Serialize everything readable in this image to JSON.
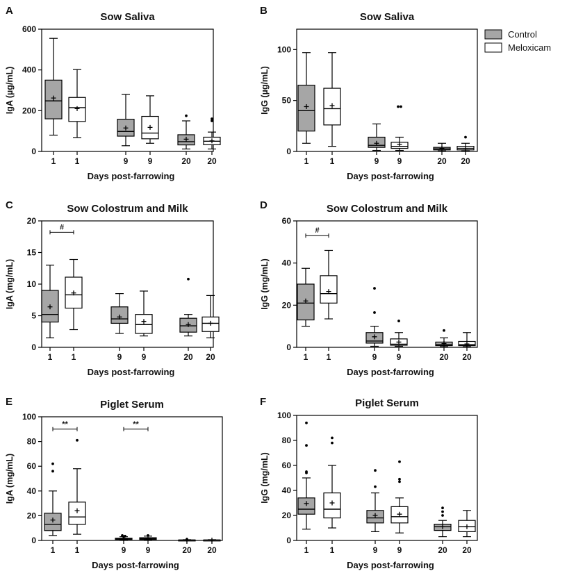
{
  "legend": {
    "entries": [
      {
        "label": "Control",
        "color": "#a6a6a6"
      },
      {
        "label": "Meloxicam",
        "color": "#ffffff"
      }
    ]
  },
  "chart_data": [
    {
      "panel": "A",
      "type": "boxplot",
      "title": "Sow Saliva",
      "xlabel": "Days post-farrowing",
      "ylabel": "IgA (µg/mL)",
      "ylim": [
        0,
        600
      ],
      "yticks": [
        0,
        200,
        400,
        600
      ],
      "categories": [
        "1",
        "1",
        "9",
        "9",
        "20",
        "20"
      ],
      "groups": [
        "Control",
        "Meloxicam",
        "Control",
        "Meloxicam",
        "Control",
        "Meloxicam"
      ],
      "boxes": [
        {
          "min": 80,
          "q1": 160,
          "median": 248,
          "q3": 350,
          "max": 555,
          "mean": 262,
          "outliers": []
        },
        {
          "min": 68,
          "q1": 147,
          "median": 215,
          "q3": 265,
          "max": 402,
          "mean": 210,
          "outliers": []
        },
        {
          "min": 28,
          "q1": 75,
          "median": 98,
          "q3": 158,
          "max": 280,
          "mean": 115,
          "outliers": []
        },
        {
          "min": 40,
          "q1": 62,
          "median": 90,
          "q3": 172,
          "max": 273,
          "mean": 118,
          "outliers": []
        },
        {
          "min": 12,
          "q1": 32,
          "median": 48,
          "q3": 82,
          "max": 150,
          "mean": 60,
          "outliers": [
            175
          ]
        },
        {
          "min": 12,
          "q1": 33,
          "median": 50,
          "q3": 70,
          "max": 95,
          "mean": 52,
          "outliers": [
            150,
            160
          ]
        }
      ],
      "significance": []
    },
    {
      "panel": "B",
      "type": "boxplot",
      "title": "Sow Saliva",
      "xlabel": "Days post-farrowing",
      "ylabel": "IgG (µg/mL)",
      "ylim": [
        0,
        120
      ],
      "yticks": [
        0,
        50,
        100
      ],
      "categories": [
        "1",
        "1",
        "9",
        "9",
        "20",
        "20"
      ],
      "groups": [
        "Control",
        "Meloxicam",
        "Control",
        "Meloxicam",
        "Control",
        "Meloxicam"
      ],
      "boxes": [
        {
          "min": 8,
          "q1": 20,
          "median": 40,
          "q3": 65,
          "max": 97,
          "mean": 44,
          "outliers": []
        },
        {
          "min": 5,
          "q1": 26,
          "median": 42,
          "q3": 62,
          "max": 97,
          "mean": 45,
          "outliers": []
        },
        {
          "min": 1,
          "q1": 4,
          "median": 6,
          "q3": 14,
          "max": 27,
          "mean": 8,
          "outliers": []
        },
        {
          "min": 1,
          "q1": 3,
          "median": 5,
          "q3": 9,
          "max": 14,
          "mean": 7,
          "outliers": [
            44,
            44
          ]
        },
        {
          "min": 0.5,
          "q1": 1.5,
          "median": 2.5,
          "q3": 4,
          "max": 8,
          "mean": 3,
          "outliers": []
        },
        {
          "min": 0.5,
          "q1": 1.5,
          "median": 3,
          "q3": 5,
          "max": 8,
          "mean": 3,
          "outliers": [
            14
          ]
        }
      ],
      "significance": []
    },
    {
      "panel": "C",
      "type": "boxplot",
      "title": "Sow Colostrum and Milk",
      "xlabel": "Days post-farrowing",
      "ylabel": "IgA (mg/mL)",
      "ylim": [
        0,
        20
      ],
      "yticks": [
        0,
        5,
        10,
        15,
        20
      ],
      "categories": [
        "1",
        "1",
        "9",
        "9",
        "20",
        "20"
      ],
      "groups": [
        "Control",
        "Meloxicam",
        "Control",
        "Meloxicam",
        "Control",
        "Meloxicam"
      ],
      "boxes": [
        {
          "min": 1.5,
          "q1": 4.0,
          "median": 5.2,
          "q3": 9.0,
          "max": 13.0,
          "mean": 6.4,
          "outliers": []
        },
        {
          "min": 2.8,
          "q1": 6.2,
          "median": 8.3,
          "q3": 11.1,
          "max": 13.9,
          "mean": 8.6,
          "outliers": []
        },
        {
          "min": 2.2,
          "q1": 3.8,
          "median": 4.5,
          "q3": 6.4,
          "max": 8.5,
          "mean": 4.8,
          "outliers": []
        },
        {
          "min": 1.8,
          "q1": 2.2,
          "median": 3.6,
          "q3": 5.2,
          "max": 8.9,
          "mean": 4.1,
          "outliers": []
        },
        {
          "min": 1.8,
          "q1": 2.4,
          "median": 3.4,
          "q3": 4.6,
          "max": 5.2,
          "mean": 3.6,
          "outliers": [
            10.8
          ]
        },
        {
          "min": 1.5,
          "q1": 2.5,
          "median": 3.8,
          "q3": 4.8,
          "max": 8.2,
          "mean": 3.8,
          "outliers": []
        }
      ],
      "significance": [
        {
          "from": 0,
          "to": 1,
          "label": "#",
          "y": 18.2
        }
      ]
    },
    {
      "panel": "D",
      "type": "boxplot",
      "title": "Sow Colostrum and Milk",
      "xlabel": "Days post-farrowing",
      "ylabel": "IgG (mg/mL)",
      "ylim": [
        0,
        60
      ],
      "yticks": [
        0,
        20,
        40,
        60
      ],
      "categories": [
        "1",
        "1",
        "9",
        "9",
        "20",
        "20"
      ],
      "groups": [
        "Control",
        "Meloxicam",
        "Control",
        "Meloxicam",
        "Control",
        "Meloxicam"
      ],
      "boxes": [
        {
          "min": 10,
          "q1": 13,
          "median": 21,
          "q3": 30,
          "max": 37.5,
          "mean": 22,
          "outliers": []
        },
        {
          "min": 13.5,
          "q1": 21,
          "median": 25.5,
          "q3": 34,
          "max": 46,
          "mean": 26.5,
          "outliers": []
        },
        {
          "min": 0.5,
          "q1": 2,
          "median": 3,
          "q3": 7,
          "max": 10,
          "mean": 5,
          "outliers": [
            16.5,
            28
          ]
        },
        {
          "min": 0.5,
          "q1": 1,
          "median": 1.5,
          "q3": 4,
          "max": 7,
          "mean": 2.5,
          "outliers": [
            12.5
          ]
        },
        {
          "min": 0.3,
          "q1": 0.8,
          "median": 1.3,
          "q3": 2.5,
          "max": 4.5,
          "mean": 1.8,
          "outliers": [
            8
          ]
        },
        {
          "min": 0.3,
          "q1": 0.8,
          "median": 1.3,
          "q3": 2.8,
          "max": 7,
          "mean": 1.6,
          "outliers": []
        }
      ],
      "significance": [
        {
          "from": 0,
          "to": 1,
          "label": "#",
          "y": 53
        }
      ]
    },
    {
      "panel": "E",
      "type": "boxplot",
      "title": "Piglet Serum",
      "xlabel": "Days post-farrowing",
      "ylabel": "IgA (mg/mL)",
      "ylim": [
        0,
        100
      ],
      "yticks": [
        0,
        20,
        40,
        60,
        80,
        100
      ],
      "categories": [
        "1",
        "1",
        "9",
        "9",
        "20",
        "20"
      ],
      "groups": [
        "Control",
        "Meloxicam",
        "Control",
        "Meloxicam",
        "Control",
        "Meloxicam"
      ],
      "boxes": [
        {
          "min": 4,
          "q1": 8,
          "median": 13,
          "q3": 22,
          "max": 40,
          "mean": 16.5,
          "outliers": [
            56,
            62
          ]
        },
        {
          "min": 5,
          "q1": 13,
          "median": 19,
          "q3": 31,
          "max": 58,
          "mean": 24,
          "outliers": [
            81
          ]
        },
        {
          "min": 0.3,
          "q1": 0.8,
          "median": 1.2,
          "q3": 1.8,
          "max": 3,
          "mean": 1.3,
          "outliers": [
            4,
            3.5,
            3
          ]
        },
        {
          "min": 0.3,
          "q1": 0.8,
          "median": 1.5,
          "q3": 2.2,
          "max": 3.5,
          "mean": 1.6,
          "outliers": [
            4
          ]
        },
        {
          "min": 0.1,
          "q1": 0.2,
          "median": 0.3,
          "q3": 0.4,
          "max": 0.6,
          "mean": 0.3,
          "outliers": [
            1
          ]
        },
        {
          "min": 0.1,
          "q1": 0.2,
          "median": 0.3,
          "q3": 0.4,
          "max": 0.6,
          "mean": 0.3,
          "outliers": []
        }
      ],
      "significance": [
        {
          "from": 0,
          "to": 1,
          "label": "**",
          "y": 90
        },
        {
          "from": 2,
          "to": 3,
          "label": "**",
          "y": 90
        }
      ]
    },
    {
      "panel": "F",
      "type": "boxplot",
      "title": "Piglet Serum",
      "xlabel": "Days post-farrowing",
      "ylabel": "IgG (mg/mL)",
      "ylim": [
        0,
        100
      ],
      "yticks": [
        0,
        20,
        40,
        60,
        80,
        100
      ],
      "categories": [
        "1",
        "1",
        "9",
        "9",
        "20",
        "20"
      ],
      "groups": [
        "Control",
        "Meloxicam",
        "Control",
        "Meloxicam",
        "Control",
        "Meloxicam"
      ],
      "boxes": [
        {
          "min": 9,
          "q1": 21,
          "median": 25,
          "q3": 34,
          "max": 50,
          "mean": 29.5,
          "outliers": [
            54,
            55,
            76,
            94
          ]
        },
        {
          "min": 10,
          "q1": 18,
          "median": 25,
          "q3": 38,
          "max": 60,
          "mean": 30,
          "outliers": [
            78,
            82
          ]
        },
        {
          "min": 7,
          "q1": 14,
          "median": 18,
          "q3": 24,
          "max": 38,
          "mean": 20,
          "outliers": [
            43,
            56
          ]
        },
        {
          "min": 6,
          "q1": 14,
          "median": 19,
          "q3": 27,
          "max": 34,
          "mean": 21,
          "outliers": [
            47,
            49,
            63
          ]
        },
        {
          "min": 3,
          "q1": 8,
          "median": 11,
          "q3": 13,
          "max": 16,
          "mean": 11,
          "outliers": [
            20,
            23,
            26
          ]
        },
        {
          "min": 3,
          "q1": 7,
          "median": 11,
          "q3": 16,
          "max": 24,
          "mean": 11,
          "outliers": []
        }
      ],
      "significance": []
    }
  ]
}
